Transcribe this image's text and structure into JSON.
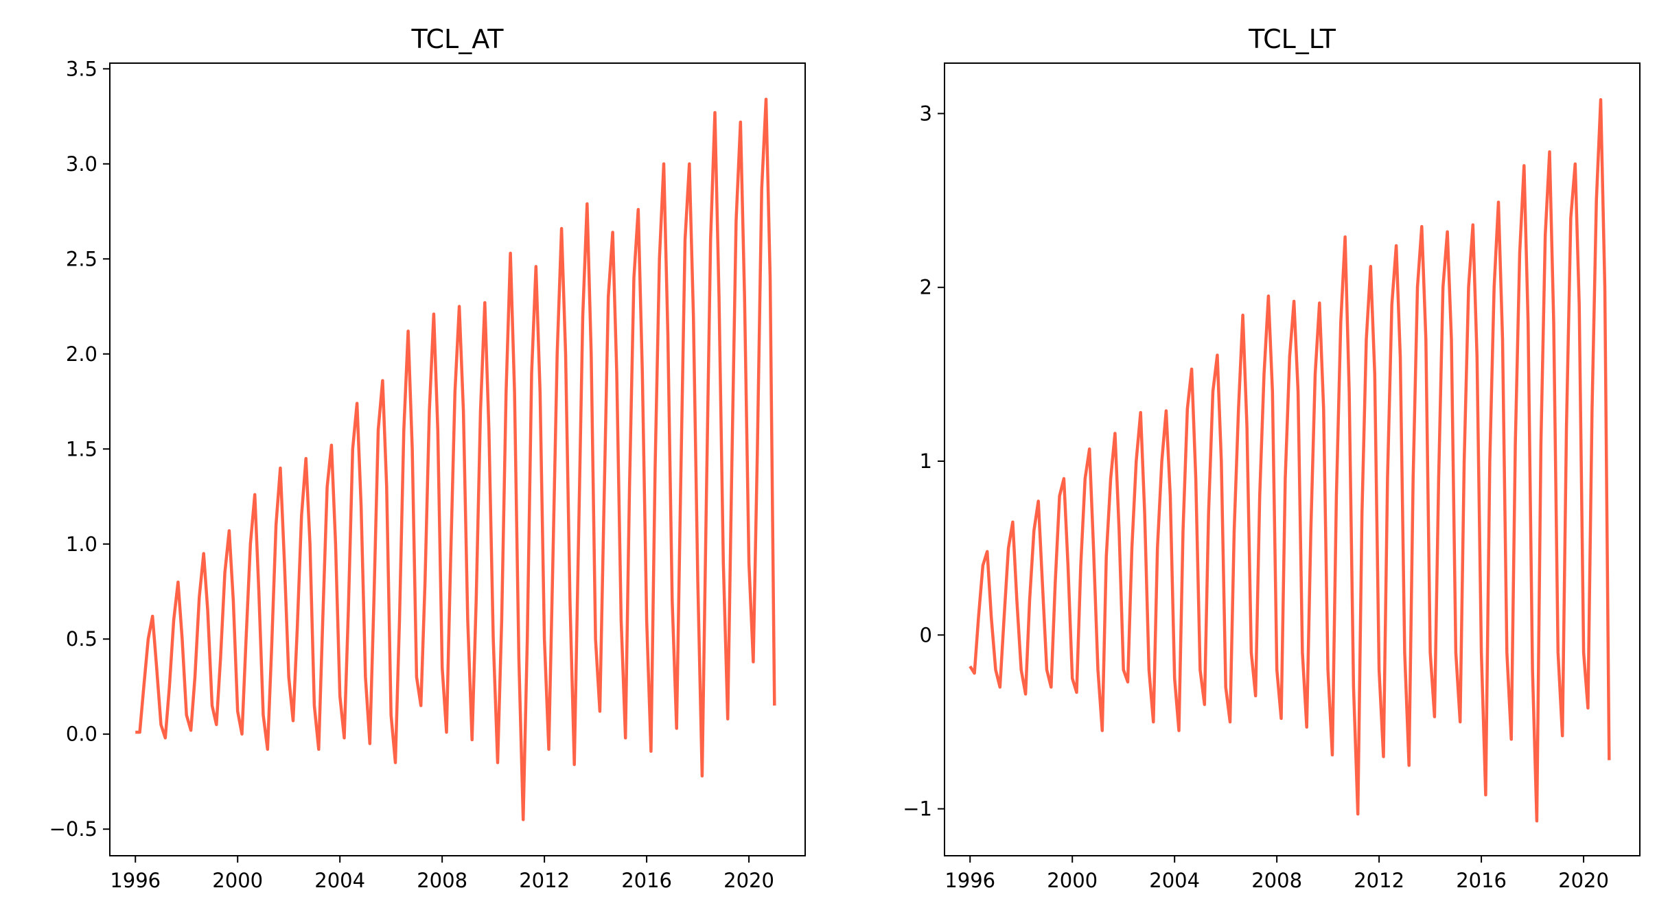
{
  "figure": {
    "line_color": "#ff6347",
    "background": "#ffffff"
  },
  "chart_data": [
    {
      "type": "line",
      "title": "TCL_AT",
      "xlabel": "",
      "ylabel": "",
      "xlim": [
        1995.0,
        2022.2
      ],
      "ylim": [
        -0.64,
        3.53
      ],
      "x_ticks": [
        1996,
        2000,
        2004,
        2008,
        2012,
        2016,
        2020
      ],
      "x_tick_labels": [
        "1996",
        "2000",
        "2004",
        "2008",
        "2012",
        "2016",
        "2020"
      ],
      "y_ticks": [
        -0.5,
        0.0,
        0.5,
        1.0,
        1.5,
        2.0,
        2.5,
        3.0,
        3.5
      ],
      "y_tick_labels": [
        "−0.5",
        "0.0",
        "0.5",
        "1.0",
        "1.5",
        "2.0",
        "2.5",
        "3.0",
        "3.5"
      ],
      "grid": false,
      "series": [
        {
          "color": "#ff6347",
          "x": [
            1996.0,
            1996.17,
            1996.33,
            1996.5,
            1996.67,
            1996.83,
            1997.0,
            1997.17,
            1997.33,
            1997.5,
            1997.67,
            1997.83,
            1998.0,
            1998.17,
            1998.33,
            1998.5,
            1998.67,
            1998.83,
            1999.0,
            1999.17,
            1999.33,
            1999.5,
            1999.67,
            1999.83,
            2000.0,
            2000.17,
            2000.33,
            2000.5,
            2000.67,
            2000.83,
            2001.0,
            2001.17,
            2001.33,
            2001.5,
            2001.67,
            2001.83,
            2002.0,
            2002.17,
            2002.33,
            2002.5,
            2002.67,
            2002.83,
            2003.0,
            2003.17,
            2003.33,
            2003.5,
            2003.67,
            2003.83,
            2004.0,
            2004.17,
            2004.33,
            2004.5,
            2004.67,
            2004.83,
            2005.0,
            2005.17,
            2005.33,
            2005.5,
            2005.67,
            2005.83,
            2006.0,
            2006.17,
            2006.33,
            2006.5,
            2006.67,
            2006.83,
            2007.0,
            2007.17,
            2007.33,
            2007.5,
            2007.67,
            2007.83,
            2008.0,
            2008.17,
            2008.33,
            2008.5,
            2008.67,
            2008.83,
            2009.0,
            2009.17,
            2009.33,
            2009.5,
            2009.67,
            2009.83,
            2010.0,
            2010.17,
            2010.33,
            2010.5,
            2010.67,
            2010.83,
            2011.0,
            2011.17,
            2011.33,
            2011.5,
            2011.67,
            2011.83,
            2012.0,
            2012.17,
            2012.33,
            2012.5,
            2012.67,
            2012.83,
            2013.0,
            2013.17,
            2013.33,
            2013.5,
            2013.67,
            2013.83,
            2014.0,
            2014.17,
            2014.33,
            2014.5,
            2014.67,
            2014.83,
            2015.0,
            2015.17,
            2015.33,
            2015.5,
            2015.67,
            2015.83,
            2016.0,
            2016.17,
            2016.33,
            2016.5,
            2016.67,
            2016.83,
            2017.0,
            2017.17,
            2017.33,
            2017.5,
            2017.67,
            2017.83,
            2018.0,
            2018.17,
            2018.33,
            2018.5,
            2018.67,
            2018.83,
            2019.0,
            2019.17,
            2019.33,
            2019.5,
            2019.67,
            2019.83,
            2020.0,
            2020.17,
            2020.33,
            2020.5,
            2020.67,
            2020.83,
            2021.0
          ],
          "y": [
            0.01,
            0.01,
            0.25,
            0.5,
            0.62,
            0.35,
            0.05,
            -0.02,
            0.25,
            0.6,
            0.8,
            0.5,
            0.1,
            0.02,
            0.3,
            0.72,
            0.95,
            0.65,
            0.15,
            0.05,
            0.4,
            0.85,
            1.07,
            0.7,
            0.12,
            0.0,
            0.5,
            1.0,
            1.26,
            0.75,
            0.1,
            -0.08,
            0.45,
            1.1,
            1.4,
            0.9,
            0.3,
            0.07,
            0.55,
            1.15,
            1.45,
            1.0,
            0.15,
            -0.08,
            0.6,
            1.3,
            1.52,
            1.0,
            0.2,
            -0.02,
            0.65,
            1.5,
            1.74,
            1.2,
            0.3,
            -0.05,
            0.7,
            1.6,
            1.86,
            1.3,
            0.1,
            -0.15,
            0.6,
            1.6,
            2.12,
            1.5,
            0.3,
            0.15,
            0.8,
            1.7,
            2.21,
            1.6,
            0.35,
            0.01,
            0.9,
            1.8,
            2.25,
            1.7,
            0.6,
            -0.03,
            0.7,
            1.7,
            2.27,
            1.6,
            0.5,
            -0.15,
            0.6,
            1.8,
            2.53,
            1.8,
            0.4,
            -0.45,
            0.5,
            1.9,
            2.46,
            1.8,
            0.5,
            -0.08,
            0.9,
            2.0,
            2.66,
            2.0,
            0.7,
            -0.16,
            1.0,
            2.2,
            2.79,
            2.0,
            0.5,
            0.12,
            1.2,
            2.3,
            2.64,
            1.9,
            0.6,
            -0.02,
            1.3,
            2.4,
            2.76,
            1.9,
            0.6,
            -0.09,
            1.4,
            2.5,
            3.0,
            2.1,
            0.7,
            0.03,
            1.3,
            2.6,
            3.0,
            2.2,
            0.8,
            -0.22,
            1.2,
            2.6,
            3.27,
            2.3,
            0.9,
            0.08,
            1.4,
            2.7,
            3.22,
            2.3,
            0.9,
            0.38,
            1.5,
            2.87,
            3.34,
            2.4,
            0.15
          ]
        }
      ]
    },
    {
      "type": "line",
      "title": "TCL_LT",
      "xlabel": "",
      "ylabel": "",
      "xlim": [
        1995.0,
        2022.2
      ],
      "ylim": [
        -1.27,
        3.29
      ],
      "x_ticks": [
        1996,
        2000,
        2004,
        2008,
        2012,
        2016,
        2020
      ],
      "x_tick_labels": [
        "1996",
        "2000",
        "2004",
        "2008",
        "2012",
        "2016",
        "2020"
      ],
      "y_ticks": [
        -1,
        0,
        1,
        2,
        3
      ],
      "y_tick_labels": [
        "−1",
        "0",
        "1",
        "2",
        "3"
      ],
      "grid": false,
      "series": [
        {
          "color": "#ff6347",
          "x": [
            1996.0,
            1996.17,
            1996.33,
            1996.5,
            1996.67,
            1996.83,
            1997.0,
            1997.17,
            1997.33,
            1997.5,
            1997.67,
            1997.83,
            1998.0,
            1998.17,
            1998.33,
            1998.5,
            1998.67,
            1998.83,
            1999.0,
            1999.17,
            1999.33,
            1999.5,
            1999.67,
            1999.83,
            2000.0,
            2000.17,
            2000.33,
            2000.5,
            2000.67,
            2000.83,
            2001.0,
            2001.17,
            2001.33,
            2001.5,
            2001.67,
            2001.83,
            2002.0,
            2002.17,
            2002.33,
            2002.5,
            2002.67,
            2002.83,
            2003.0,
            2003.17,
            2003.33,
            2003.5,
            2003.67,
            2003.83,
            2004.0,
            2004.17,
            2004.33,
            2004.5,
            2004.67,
            2004.83,
            2005.0,
            2005.17,
            2005.33,
            2005.5,
            2005.67,
            2005.83,
            2006.0,
            2006.17,
            2006.33,
            2006.5,
            2006.67,
            2006.83,
            2007.0,
            2007.17,
            2007.33,
            2007.5,
            2007.67,
            2007.83,
            2008.0,
            2008.17,
            2008.33,
            2008.5,
            2008.67,
            2008.83,
            2009.0,
            2009.17,
            2009.33,
            2009.5,
            2009.67,
            2009.83,
            2010.0,
            2010.17,
            2010.33,
            2010.5,
            2010.67,
            2010.83,
            2011.0,
            2011.17,
            2011.33,
            2011.5,
            2011.67,
            2011.83,
            2012.0,
            2012.17,
            2012.33,
            2012.5,
            2012.67,
            2012.83,
            2013.0,
            2013.17,
            2013.33,
            2013.5,
            2013.67,
            2013.83,
            2014.0,
            2014.17,
            2014.33,
            2014.5,
            2014.67,
            2014.83,
            2015.0,
            2015.17,
            2015.33,
            2015.5,
            2015.67,
            2015.83,
            2016.0,
            2016.17,
            2016.33,
            2016.5,
            2016.67,
            2016.83,
            2017.0,
            2017.17,
            2017.33,
            2017.5,
            2017.67,
            2017.83,
            2018.0,
            2018.17,
            2018.33,
            2018.5,
            2018.67,
            2018.83,
            2019.0,
            2019.17,
            2019.33,
            2019.5,
            2019.67,
            2019.83,
            2020.0,
            2020.17,
            2020.33,
            2020.5,
            2020.67,
            2020.83,
            2021.0
          ],
          "y": [
            -0.18,
            -0.22,
            0.1,
            0.4,
            0.48,
            0.1,
            -0.2,
            -0.3,
            0.1,
            0.5,
            0.65,
            0.2,
            -0.2,
            -0.34,
            0.2,
            0.6,
            0.77,
            0.3,
            -0.2,
            -0.3,
            0.3,
            0.8,
            0.9,
            0.4,
            -0.25,
            -0.33,
            0.4,
            0.9,
            1.07,
            0.5,
            -0.2,
            -0.55,
            0.45,
            0.9,
            1.16,
            0.6,
            -0.2,
            -0.27,
            0.5,
            1.0,
            1.28,
            0.7,
            -0.2,
            -0.5,
            0.5,
            1.0,
            1.29,
            0.8,
            -0.25,
            -0.55,
            0.6,
            1.3,
            1.53,
            0.9,
            -0.2,
            -0.4,
            0.7,
            1.4,
            1.61,
            1.0,
            -0.3,
            -0.5,
            0.6,
            1.3,
            1.84,
            1.2,
            -0.1,
            -0.35,
            0.8,
            1.5,
            1.95,
            1.4,
            -0.2,
            -0.48,
            0.9,
            1.6,
            1.92,
            1.4,
            -0.1,
            -0.53,
            0.6,
            1.5,
            1.91,
            1.3,
            -0.2,
            -0.69,
            0.8,
            1.8,
            2.29,
            1.4,
            -0.3,
            -1.03,
            0.7,
            1.7,
            2.12,
            1.5,
            -0.2,
            -0.7,
            0.9,
            1.9,
            2.24,
            1.6,
            -0.1,
            -0.75,
            0.9,
            2.0,
            2.35,
            1.7,
            -0.1,
            -0.47,
            0.9,
            2.0,
            2.32,
            1.7,
            -0.1,
            -0.5,
            1.0,
            2.0,
            2.36,
            1.6,
            -0.1,
            -0.92,
            1.0,
            2.0,
            2.49,
            1.7,
            -0.1,
            -0.6,
            1.1,
            2.2,
            2.7,
            1.8,
            -0.2,
            -1.07,
            1.1,
            2.3,
            2.78,
            1.8,
            -0.1,
            -0.58,
            1.2,
            2.4,
            2.71,
            1.9,
            -0.1,
            -0.42,
            1.3,
            2.5,
            3.08,
            2.0,
            -0.72
          ]
        }
      ]
    }
  ]
}
